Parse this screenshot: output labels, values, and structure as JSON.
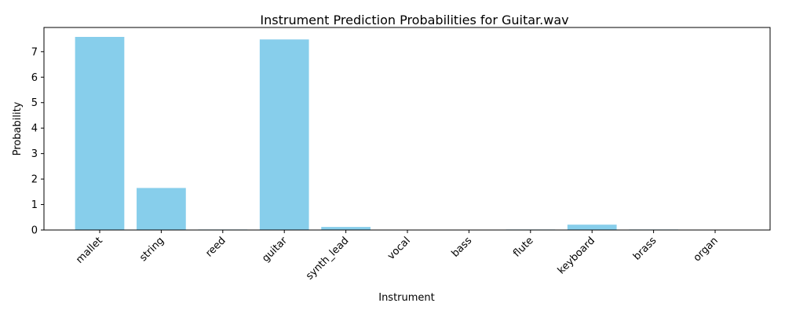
{
  "chart_data": {
    "type": "bar",
    "title": "Instrument Prediction Probabilities for Guitar.wav",
    "xlabel": "Instrument",
    "ylabel": "Probability",
    "categories": [
      "mallet",
      "string",
      "reed",
      "guitar",
      "synth_lead",
      "vocal",
      "bass",
      "flute",
      "keyboard",
      "brass",
      "organ"
    ],
    "values": [
      7.58,
      1.65,
      0.02,
      7.48,
      0.12,
      0.0,
      0.0,
      0.02,
      0.21,
      0.02,
      0.0
    ],
    "ylim": [
      0,
      7.95
    ],
    "yticks": [
      0,
      1,
      2,
      3,
      4,
      5,
      6,
      7
    ],
    "bar_color": "#87ceeb",
    "grid": false,
    "legend": "none"
  }
}
